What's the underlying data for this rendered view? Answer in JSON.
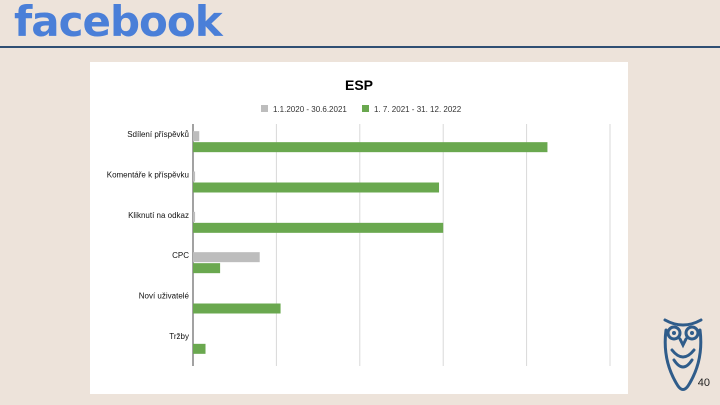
{
  "brand": {
    "logo_text": "facebook",
    "logo_color": "#4a7fd8"
  },
  "slide": {
    "page_number": "40"
  },
  "colors": {
    "series_1": "#bdbdbd",
    "series_2": "#6aa84f",
    "rule": "#2f4f73",
    "owl": "#2f5c8a"
  },
  "chart_data": {
    "type": "bar",
    "orientation": "horizontal",
    "title": "ESP",
    "xlabel": "",
    "ylabel": "",
    "categories": [
      "Sdílení příspěvků",
      "Komentáře k příspěvku",
      "Kliknutí na odkaz",
      "CPC",
      "Noví uživatelé",
      "Tržby"
    ],
    "series": [
      {
        "name": "1.1.2020 - 30.6.2021",
        "values": [
          1.5,
          0.5,
          0.5,
          16,
          0,
          0
        ]
      },
      {
        "name": "1. 7. 2021 - 31. 12. 2022",
        "values": [
          85,
          59,
          60,
          6.5,
          21,
          3
        ]
      }
    ],
    "xlim": [
      0,
      100
    ],
    "grid": true,
    "legend_position": "top"
  }
}
